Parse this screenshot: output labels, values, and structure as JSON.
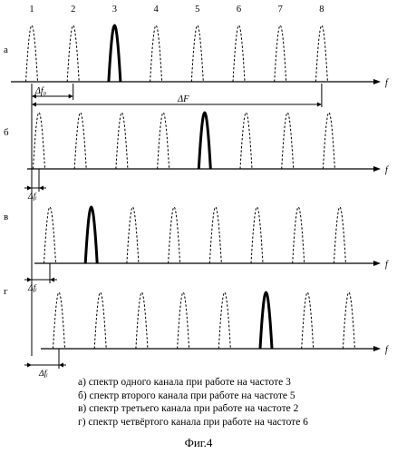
{
  "figure": {
    "channel_numbers": [
      "1",
      "2",
      "3",
      "4",
      "5",
      "6",
      "7",
      "8"
    ],
    "freq_axis_label": "f",
    "spacing_label": "Δf₀",
    "bandwidth_label": "ΔF",
    "offset_label": "Δfᵢ",
    "rows": [
      {
        "letter": "а",
        "active_channel": 3
      },
      {
        "letter": "б",
        "active_channel": 5
      },
      {
        "letter": "в",
        "active_channel": 2
      },
      {
        "letter": "г",
        "active_channel": 6
      }
    ]
  },
  "captions": [
    "а) спектр одного канала при работе на частоте 3",
    "б) спектр второго канала при работе на частоте 5",
    "в) спектр третьего канала при работе на частоте 2",
    "г) спектр четвёртого канала при работе на частоте 6"
  ],
  "figure_title": "Фиг.4"
}
